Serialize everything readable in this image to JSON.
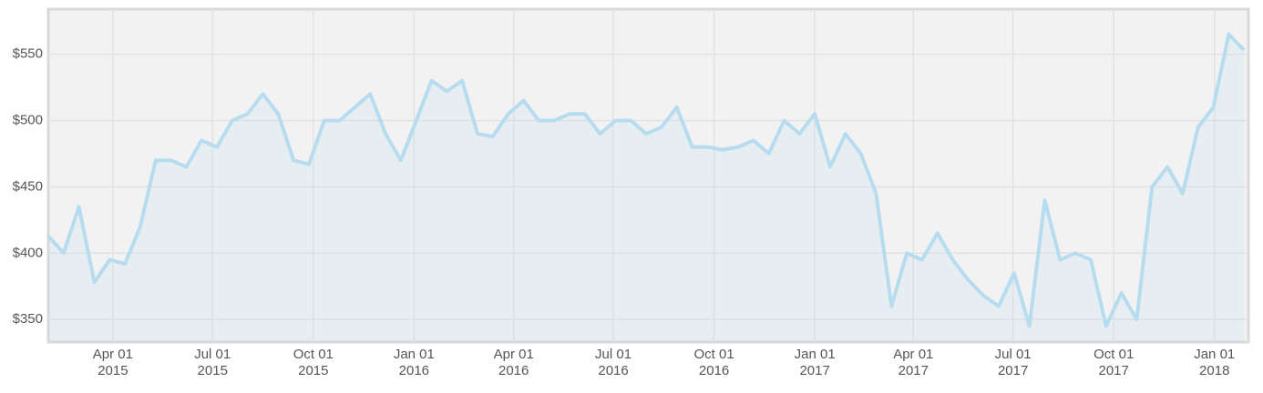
{
  "chart_data": {
    "type": "line",
    "x": [
      "2015-02-01",
      "2015-02-15",
      "2015-03-01",
      "2015-03-15",
      "2015-03-29",
      "2015-04-12",
      "2015-04-26",
      "2015-05-10",
      "2015-05-24",
      "2015-06-07",
      "2015-06-21",
      "2015-07-05",
      "2015-07-19",
      "2015-08-02",
      "2015-08-16",
      "2015-08-30",
      "2015-09-13",
      "2015-09-27",
      "2015-10-11",
      "2015-10-25",
      "2015-11-08",
      "2015-11-22",
      "2015-12-06",
      "2015-12-20",
      "2016-01-03",
      "2016-01-17",
      "2016-01-31",
      "2016-02-14",
      "2016-02-28",
      "2016-03-13",
      "2016-03-27",
      "2016-04-10",
      "2016-04-24",
      "2016-05-08",
      "2016-05-22",
      "2016-06-05",
      "2016-06-19",
      "2016-07-03",
      "2016-07-17",
      "2016-07-31",
      "2016-08-14",
      "2016-08-28",
      "2016-09-11",
      "2016-09-25",
      "2016-10-09",
      "2016-10-23",
      "2016-11-06",
      "2016-11-20",
      "2016-12-04",
      "2016-12-18",
      "2017-01-01",
      "2017-01-15",
      "2017-01-29",
      "2017-02-12",
      "2017-02-26",
      "2017-03-12",
      "2017-03-26",
      "2017-04-09",
      "2017-04-23",
      "2017-05-07",
      "2017-05-21",
      "2017-06-04",
      "2017-06-18",
      "2017-07-02",
      "2017-07-16",
      "2017-07-30",
      "2017-08-13",
      "2017-08-27",
      "2017-09-10",
      "2017-09-24",
      "2017-10-08",
      "2017-10-22",
      "2017-11-05",
      "2017-11-19",
      "2017-12-03",
      "2017-12-17",
      "2017-12-31",
      "2018-01-14",
      "2018-01-28"
    ],
    "series": [
      {
        "color": "#b8dcef",
        "values": [
          413,
          400,
          435,
          378,
          395,
          392,
          420,
          470,
          470,
          465,
          485,
          480,
          500,
          505,
          520,
          505,
          470,
          467,
          500,
          500,
          510,
          520,
          490,
          470,
          500,
          530,
          522,
          530,
          490,
          488,
          505,
          515,
          500,
          500,
          505,
          505,
          490,
          500,
          500,
          490,
          495,
          510,
          480,
          480,
          478,
          480,
          485,
          475,
          500,
          490,
          505,
          465,
          490,
          475,
          445,
          360,
          400,
          395,
          415,
          395,
          380,
          368,
          360,
          385,
          345,
          440,
          395,
          400,
          395,
          345,
          370,
          350,
          450,
          465,
          445,
          495,
          510,
          565,
          553
        ]
      }
    ],
    "xlim": [
      "2015-02-01",
      "2018-02-01"
    ],
    "xticks": [
      {
        "value": "2015-04-01",
        "label": [
          "Apr 01",
          "2015"
        ]
      },
      {
        "value": "2015-07-01",
        "label": [
          "Jul 01",
          "2015"
        ]
      },
      {
        "value": "2015-10-01",
        "label": [
          "Oct 01",
          "2015"
        ]
      },
      {
        "value": "2016-01-01",
        "label": [
          "Jan 01",
          "2016"
        ]
      },
      {
        "value": "2016-04-01",
        "label": [
          "Apr 01",
          "2016"
        ]
      },
      {
        "value": "2016-07-01",
        "label": [
          "Jul 01",
          "2016"
        ]
      },
      {
        "value": "2016-10-01",
        "label": [
          "Oct 01",
          "2016"
        ]
      },
      {
        "value": "2017-01-01",
        "label": [
          "Jan 01",
          "2017"
        ]
      },
      {
        "value": "2017-04-01",
        "label": [
          "Apr 01",
          "2017"
        ]
      },
      {
        "value": "2017-07-01",
        "label": [
          "Jul 01",
          "2017"
        ]
      },
      {
        "value": "2017-10-01",
        "label": [
          "Oct 01",
          "2017"
        ]
      },
      {
        "value": "2018-01-01",
        "label": [
          "Jan 01",
          "2018"
        ]
      }
    ],
    "ylim": [
      333,
      584
    ],
    "yticks": [
      {
        "value": 350,
        "label": "$350"
      },
      {
        "value": 400,
        "label": "$400"
      },
      {
        "value": 450,
        "label": "$450"
      },
      {
        "value": 500,
        "label": "$500"
      },
      {
        "value": 550,
        "label": "$550"
      }
    ],
    "grid": true
  }
}
